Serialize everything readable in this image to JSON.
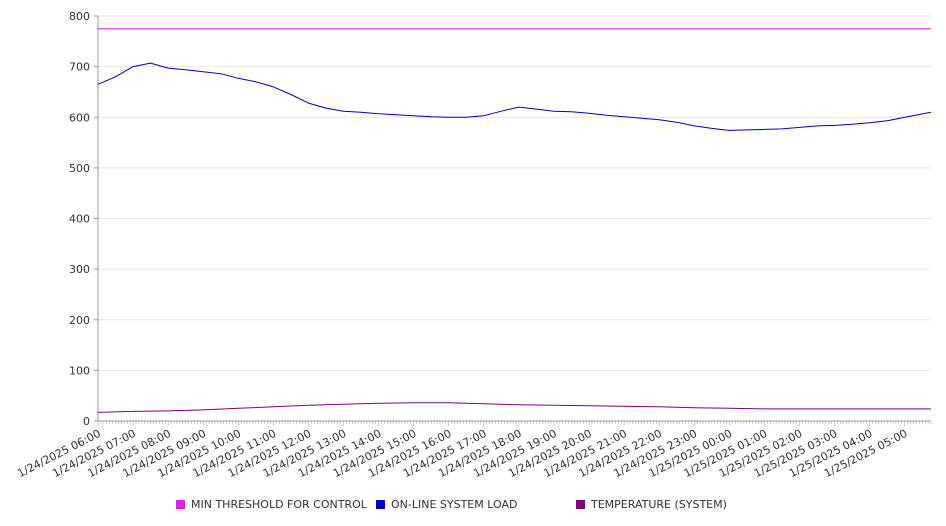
{
  "chart_data": {
    "type": "line",
    "ylim": [
      0,
      800
    ],
    "yticks": [
      0,
      100,
      200,
      300,
      400,
      500,
      600,
      700,
      800
    ],
    "grid": true,
    "legend_position": "bottom",
    "xlim": [
      "1/24/2025 06:00",
      "1/25/2025 05:45"
    ],
    "x_tick_labels": [
      "1/24/2025 06:00",
      "1/24/2025 07:00",
      "1/24/2025 08:00",
      "1/24/2025 09:00",
      "1/24/2025 10:00",
      "1/24/2025 11:00",
      "1/24/2025 12:00",
      "1/24/2025 13:00",
      "1/24/2025 14:00",
      "1/24/2025 15:00",
      "1/24/2025 16:00",
      "1/24/2025 17:00",
      "1/24/2025 18:00",
      "1/24/2025 19:00",
      "1/24/2025 20:00",
      "1/24/2025 21:00",
      "1/24/2025 22:00",
      "1/24/2025 23:00",
      "1/25/2025 00:00",
      "1/25/2025 01:00",
      "1/25/2025 02:00",
      "1/25/2025 03:00",
      "1/25/2025 04:00",
      "1/25/2025 05:00"
    ],
    "series": [
      {
        "name": "MIN THRESHOLD FOR CONTROL",
        "color": "#e020e0",
        "points": [
          [
            "1/24/2025 06:00",
            775
          ],
          [
            "1/25/2025 05:45",
            775
          ]
        ]
      },
      {
        "name": "ON-LINE SYSTEM LOAD",
        "color": "#0000cc",
        "points": [
          [
            "1/24/2025 06:00",
            665
          ],
          [
            "1/24/2025 06:30",
            680
          ],
          [
            "1/24/2025 07:00",
            700
          ],
          [
            "1/24/2025 07:30",
            707
          ],
          [
            "1/24/2025 08:00",
            697
          ],
          [
            "1/24/2025 08:30",
            694
          ],
          [
            "1/24/2025 09:00",
            690
          ],
          [
            "1/24/2025 09:30",
            686
          ],
          [
            "1/24/2025 10:00",
            677
          ],
          [
            "1/24/2025 10:30",
            670
          ],
          [
            "1/24/2025 11:00",
            660
          ],
          [
            "1/24/2025 11:30",
            645
          ],
          [
            "1/24/2025 12:00",
            628
          ],
          [
            "1/24/2025 12:30",
            618
          ],
          [
            "1/24/2025 13:00",
            612
          ],
          [
            "1/24/2025 13:30",
            610
          ],
          [
            "1/24/2025 14:00",
            607
          ],
          [
            "1/24/2025 14:30",
            605
          ],
          [
            "1/24/2025 15:00",
            603
          ],
          [
            "1/24/2025 15:30",
            601
          ],
          [
            "1/24/2025 16:00",
            600
          ],
          [
            "1/24/2025 16:30",
            600
          ],
          [
            "1/24/2025 17:00",
            603
          ],
          [
            "1/24/2025 17:30",
            612
          ],
          [
            "1/24/2025 18:00",
            620
          ],
          [
            "1/24/2025 18:30",
            616
          ],
          [
            "1/24/2025 19:00",
            612
          ],
          [
            "1/24/2025 19:30",
            611
          ],
          [
            "1/24/2025 20:00",
            608
          ],
          [
            "1/24/2025 20:30",
            604
          ],
          [
            "1/24/2025 21:00",
            601
          ],
          [
            "1/24/2025 21:30",
            598
          ],
          [
            "1/24/2025 22:00",
            595
          ],
          [
            "1/24/2025 22:30",
            590
          ],
          [
            "1/24/2025 23:00",
            583
          ],
          [
            "1/24/2025 23:30",
            578
          ],
          [
            "1/25/2025 00:00",
            574
          ],
          [
            "1/25/2025 00:30",
            575
          ],
          [
            "1/25/2025 01:00",
            576
          ],
          [
            "1/25/2025 01:30",
            577
          ],
          [
            "1/25/2025 02:00",
            580
          ],
          [
            "1/25/2025 02:30",
            583
          ],
          [
            "1/25/2025 03:00",
            584
          ],
          [
            "1/25/2025 03:30",
            586
          ],
          [
            "1/25/2025 04:00",
            589
          ],
          [
            "1/25/2025 04:30",
            593
          ],
          [
            "1/25/2025 05:00",
            600
          ],
          [
            "1/25/2025 05:45",
            610
          ]
        ]
      },
      {
        "name": "TEMPERATURE (SYSTEM)",
        "color": "#800080",
        "points": [
          [
            "1/24/2025 06:00",
            17
          ],
          [
            "1/24/2025 07:00",
            19
          ],
          [
            "1/24/2025 08:00",
            20
          ],
          [
            "1/24/2025 09:00",
            22
          ],
          [
            "1/24/2025 10:00",
            25
          ],
          [
            "1/24/2025 11:00",
            28
          ],
          [
            "1/24/2025 12:00",
            31
          ],
          [
            "1/24/2025 13:00",
            33
          ],
          [
            "1/24/2025 14:00",
            35
          ],
          [
            "1/24/2025 15:00",
            36
          ],
          [
            "1/24/2025 16:00",
            36
          ],
          [
            "1/24/2025 17:00",
            34
          ],
          [
            "1/24/2025 18:00",
            32
          ],
          [
            "1/24/2025 19:00",
            31
          ],
          [
            "1/24/2025 20:00",
            30
          ],
          [
            "1/24/2025 21:00",
            29
          ],
          [
            "1/24/2025 22:00",
            28
          ],
          [
            "1/24/2025 23:00",
            26
          ],
          [
            "1/25/2025 00:00",
            25
          ],
          [
            "1/25/2025 01:00",
            24
          ],
          [
            "1/25/2025 02:00",
            24
          ],
          [
            "1/25/2025 03:00",
            24
          ],
          [
            "1/25/2025 04:00",
            24
          ],
          [
            "1/25/2025 05:45",
            24
          ]
        ]
      }
    ]
  }
}
